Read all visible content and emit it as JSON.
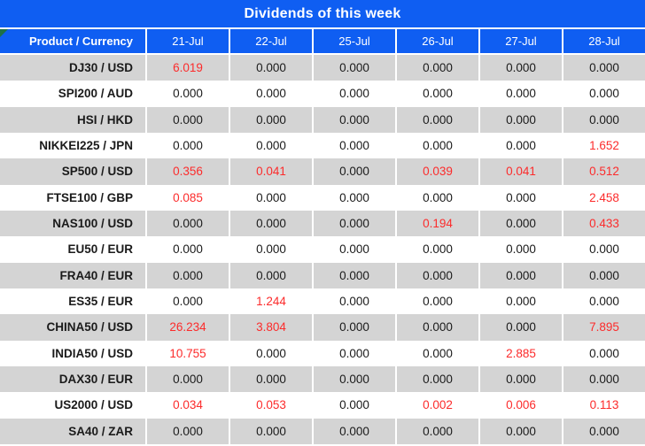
{
  "title": "Dividends of this week",
  "colors": {
    "header_blue": "#0f5ef2",
    "header_text": "#ffffff",
    "row_gray": "#d4d4d4",
    "row_white": "#ffffff",
    "grid_white": "#ffffff",
    "value_red": "#fc2b2b",
    "value_black": "#1a1a1a",
    "corner_marker_green": "#1e7145"
  },
  "icons": {
    "corner_marker": "corner-marker-icon"
  },
  "table": {
    "product_header": "Product / Currency",
    "date_headers": [
      "21-Jul",
      "22-Jul",
      "25-Jul",
      "26-Jul",
      "27-Jul",
      "28-Jul"
    ],
    "rows": [
      {
        "product": "DJ30 / USD",
        "values": [
          "6.019",
          "0.000",
          "0.000",
          "0.000",
          "0.000",
          "0.000"
        ]
      },
      {
        "product": "SPI200 / AUD",
        "values": [
          "0.000",
          "0.000",
          "0.000",
          "0.000",
          "0.000",
          "0.000"
        ]
      },
      {
        "product": "HSI / HKD",
        "values": [
          "0.000",
          "0.000",
          "0.000",
          "0.000",
          "0.000",
          "0.000"
        ]
      },
      {
        "product": "NIKKEI225 / JPN",
        "values": [
          "0.000",
          "0.000",
          "0.000",
          "0.000",
          "0.000",
          "1.652"
        ]
      },
      {
        "product": "SP500 / USD",
        "values": [
          "0.356",
          "0.041",
          "0.000",
          "0.039",
          "0.041",
          "0.512"
        ]
      },
      {
        "product": "FTSE100 / GBP",
        "values": [
          "0.085",
          "0.000",
          "0.000",
          "0.000",
          "0.000",
          "2.458"
        ]
      },
      {
        "product": "NAS100 / USD",
        "values": [
          "0.000",
          "0.000",
          "0.000",
          "0.194",
          "0.000",
          "0.433"
        ]
      },
      {
        "product": "EU50 / EUR",
        "values": [
          "0.000",
          "0.000",
          "0.000",
          "0.000",
          "0.000",
          "0.000"
        ]
      },
      {
        "product": "FRA40 / EUR",
        "values": [
          "0.000",
          "0.000",
          "0.000",
          "0.000",
          "0.000",
          "0.000"
        ]
      },
      {
        "product": "ES35 / EUR",
        "values": [
          "0.000",
          "1.244",
          "0.000",
          "0.000",
          "0.000",
          "0.000"
        ]
      },
      {
        "product": "CHINA50 / USD",
        "values": [
          "26.234",
          "3.804",
          "0.000",
          "0.000",
          "0.000",
          "7.895"
        ]
      },
      {
        "product": "INDIA50 / USD",
        "values": [
          "10.755",
          "0.000",
          "0.000",
          "0.000",
          "2.885",
          "0.000"
        ]
      },
      {
        "product": "DAX30 / EUR",
        "values": [
          "0.000",
          "0.000",
          "0.000",
          "0.000",
          "0.000",
          "0.000"
        ]
      },
      {
        "product": "US2000 / USD",
        "values": [
          "0.034",
          "0.053",
          "0.000",
          "0.002",
          "0.006",
          "0.113"
        ]
      },
      {
        "product": "SA40 / ZAR",
        "values": [
          "0.000",
          "0.000",
          "0.000",
          "0.000",
          "0.000",
          "0.000"
        ]
      }
    ]
  }
}
